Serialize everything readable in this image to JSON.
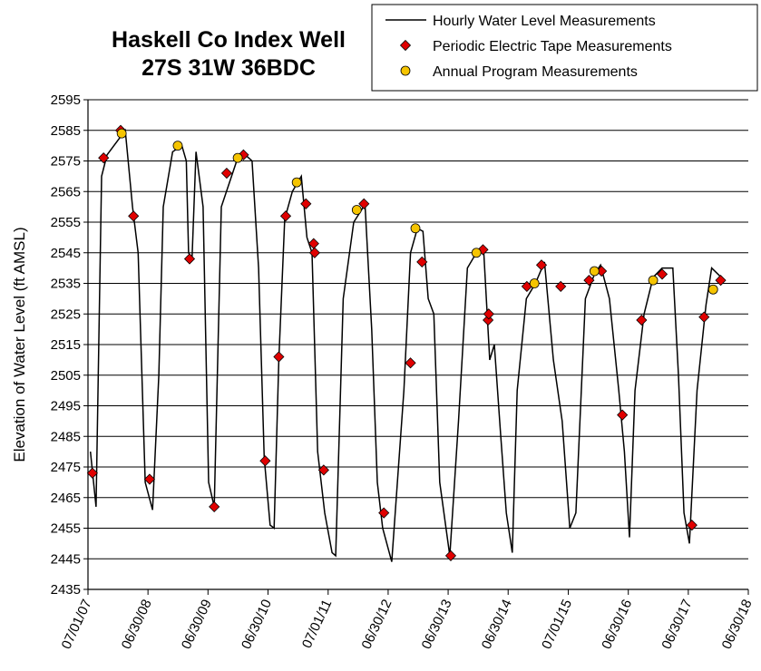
{
  "chart_data": {
    "type": "line",
    "title": "Haskell Co Index Well",
    "subtitle": "27S 31W 36BDC",
    "ylabel": "Elevation of Water Level (ft AMSL)",
    "xlim": [
      "2007-07-01",
      "2018-06-30"
    ],
    "xticks": [
      {
        "value": "2007-07-01",
        "label": "07/01/07"
      },
      {
        "value": "2008-06-30",
        "label": "06/30/08"
      },
      {
        "value": "2009-06-30",
        "label": "06/30/09"
      },
      {
        "value": "2010-06-30",
        "label": "06/30/10"
      },
      {
        "value": "2011-07-01",
        "label": "07/01/11"
      },
      {
        "value": "2012-06-30",
        "label": "06/30/12"
      },
      {
        "value": "2013-06-30",
        "label": "06/30/13"
      },
      {
        "value": "2014-06-30",
        "label": "06/30/14"
      },
      {
        "value": "2015-07-01",
        "label": "07/01/15"
      },
      {
        "value": "2016-06-30",
        "label": "06/30/16"
      },
      {
        "value": "2017-06-30",
        "label": "06/30/17"
      },
      {
        "value": "2018-06-30",
        "label": "06/30/18"
      }
    ],
    "ylim": [
      2435,
      2595
    ],
    "yticks": [
      2435,
      2445,
      2455,
      2465,
      2475,
      2485,
      2495,
      2505,
      2515,
      2525,
      2535,
      2545,
      2555,
      2565,
      2575,
      2585,
      2595
    ],
    "grid": true,
    "legend": "top-right",
    "series": [
      {
        "name": "Hourly Water Level Measurements",
        "color": "#000000",
        "marker": "none",
        "x": [
          "2007-07-16",
          "2007-08-19",
          "2007-09-22",
          "2007-10-25",
          "2008-02-13",
          "2008-03-28",
          "2008-05-01",
          "2008-06-13",
          "2008-07-28",
          "2008-09-04",
          "2008-10-01",
          "2008-11-27",
          "2009-01-22",
          "2009-02-18",
          "2009-03-04",
          "2009-03-25",
          "2009-04-18",
          "2009-05-31",
          "2009-07-04",
          "2009-08-07",
          "2009-09-19",
          "2009-12-28",
          "2010-02-12",
          "2010-03-25",
          "2010-05-04",
          "2010-06-07",
          "2010-07-13",
          "2010-08-06",
          "2010-09-04",
          "2010-10-10",
          "2010-11-25",
          "2011-01-19",
          "2011-02-22",
          "2011-03-25",
          "2011-04-28",
          "2011-06-10",
          "2011-07-25",
          "2011-08-16",
          "2011-10-01",
          "2011-12-04",
          "2012-02-01",
          "2012-02-10",
          "2012-03-22",
          "2012-04-25",
          "2012-05-28",
          "2012-07-22",
          "2012-10-04",
          "2012-11-13",
          "2012-12-25",
          "2013-01-28",
          "2013-03-01",
          "2013-04-04",
          "2013-05-10",
          "2013-07-10",
          "2013-09-01",
          "2013-10-25",
          "2013-12-19",
          "2014-02-01",
          "2014-03-10",
          "2014-04-07",
          "2014-05-16",
          "2014-06-19",
          "2014-07-25",
          "2014-08-24",
          "2014-10-19",
          "2014-12-13",
          "2015-02-06",
          "2015-04-01",
          "2015-05-25",
          "2015-07-10",
          "2015-08-16",
          "2015-10-13",
          "2015-12-07",
          "2016-01-13",
          "2016-03-07",
          "2016-05-03",
          "2016-06-06",
          "2016-07-07",
          "2016-08-10",
          "2016-10-04",
          "2016-11-28",
          "2017-01-22",
          "2017-03-28",
          "2017-05-01",
          "2017-06-04",
          "2017-07-07",
          "2017-08-22",
          "2017-10-16",
          "2017-11-19",
          "2018-01-16"
        ],
        "values": [
          2480,
          2462,
          2570,
          2577,
          2585,
          2560,
          2545,
          2470,
          2461,
          2505,
          2560,
          2578,
          2580,
          2575,
          2545,
          2543,
          2578,
          2560,
          2470,
          2462,
          2560,
          2576,
          2577,
          2575,
          2540,
          2478,
          2456,
          2455,
          2510,
          2556,
          2565,
          2570,
          2550,
          2545,
          2480,
          2460,
          2447,
          2446,
          2530,
          2555,
          2560,
          2561,
          2520,
          2470,
          2455,
          2444,
          2500,
          2545,
          2553,
          2552,
          2530,
          2525,
          2470,
          2446,
          2490,
          2540,
          2545,
          2546,
          2510,
          2515,
          2485,
          2460,
          2447,
          2500,
          2530,
          2535,
          2542,
          2510,
          2490,
          2455,
          2460,
          2530,
          2538,
          2541,
          2530,
          2500,
          2480,
          2452,
          2500,
          2525,
          2537,
          2540,
          2540,
          2505,
          2460,
          2450,
          2500,
          2528,
          2540,
          2537
        ]
      },
      {
        "name": "Periodic Electric Tape Measurements",
        "color": "#e00000",
        "marker": "diamond",
        "x": [
          "2007-07-28",
          "2007-10-04",
          "2008-01-16",
          "2008-04-03",
          "2008-07-10",
          "2009-03-10",
          "2009-08-07",
          "2009-10-22",
          "2010-02-01",
          "2010-06-13",
          "2010-09-04",
          "2010-10-16",
          "2011-02-16",
          "2011-04-04",
          "2011-04-10",
          "2011-06-04",
          "2012-02-04",
          "2012-06-04",
          "2012-11-13",
          "2013-01-22",
          "2013-07-16",
          "2014-01-28",
          "2014-02-28",
          "2014-03-04",
          "2014-10-22",
          "2015-01-19",
          "2015-05-16",
          "2015-11-04",
          "2016-01-19",
          "2016-05-25",
          "2016-09-19",
          "2017-01-22",
          "2017-07-22",
          "2017-10-04",
          "2018-01-13"
        ],
        "values": [
          2473,
          2576,
          2585,
          2557,
          2471,
          2543,
          2462,
          2571,
          2577,
          2477,
          2511,
          2557,
          2561,
          2548,
          2545,
          2474,
          2561,
          2460,
          2509,
          2542,
          2446,
          2546,
          2523,
          2525,
          2534,
          2541,
          2534,
          2536,
          2539,
          2492,
          2523,
          2538,
          2456,
          2524,
          2536
        ]
      },
      {
        "name": "Annual Program Measurements",
        "color": "#f5c400",
        "marker": "circle",
        "x": [
          "2008-01-22",
          "2008-12-28",
          "2009-12-28",
          "2010-12-22",
          "2011-12-22",
          "2012-12-13",
          "2013-12-19",
          "2014-12-07",
          "2015-12-07",
          "2016-11-28",
          "2017-11-28"
        ],
        "values": [
          2584,
          2580,
          2576,
          2568,
          2559,
          2553,
          2545,
          2535,
          2539,
          2536,
          2533
        ]
      }
    ]
  }
}
